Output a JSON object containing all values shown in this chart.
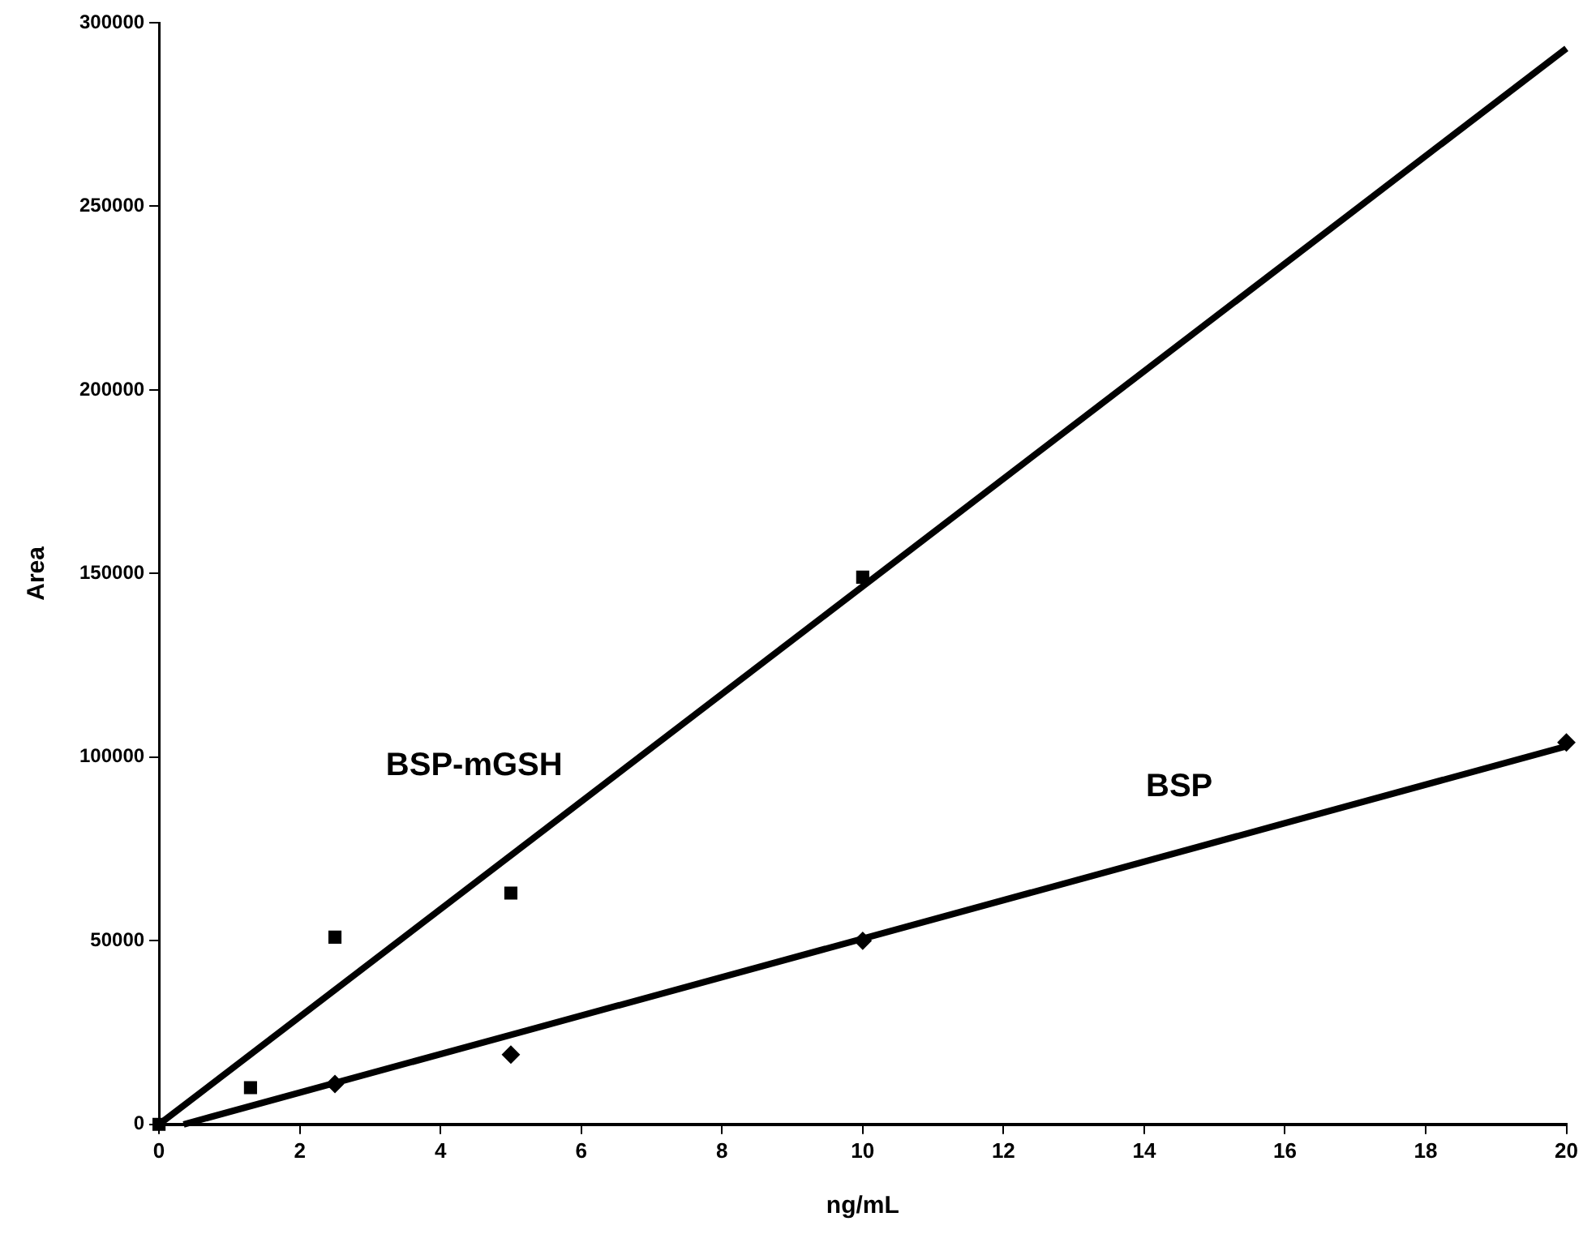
{
  "chart_data": {
    "type": "scatter",
    "xlabel": "ng/mL",
    "ylabel": "Area",
    "xlim": [
      0,
      20
    ],
    "ylim": [
      0,
      300000
    ],
    "xticks": [
      0,
      2,
      4,
      6,
      8,
      10,
      12,
      14,
      16,
      18,
      20
    ],
    "yticks": [
      0,
      50000,
      100000,
      150000,
      200000,
      250000,
      300000
    ],
    "grid": false,
    "legend": false,
    "series": [
      {
        "marker": "square",
        "color": "#000000",
        "x": [
          0,
          1.3,
          2.5,
          5,
          10
        ],
        "values": [
          0,
          10000,
          51000,
          63000,
          149000
        ]
      },
      {
        "marker": "diamond",
        "color": "#000000",
        "x": [
          2.5,
          5,
          10,
          20
        ],
        "values": [
          11000,
          19000,
          50000,
          104000
        ]
      },
      {
        "type": "line",
        "name": "BSP-mGSH",
        "marker": "none",
        "color": "#000000",
        "x": [
          0,
          20
        ],
        "values": [
          0,
          293000
        ]
      },
      {
        "type": "line",
        "name": "BSP",
        "marker": "none",
        "color": "#000000",
        "x": [
          0.35,
          20
        ],
        "values": [
          0,
          103000
        ]
      }
    ]
  }
}
